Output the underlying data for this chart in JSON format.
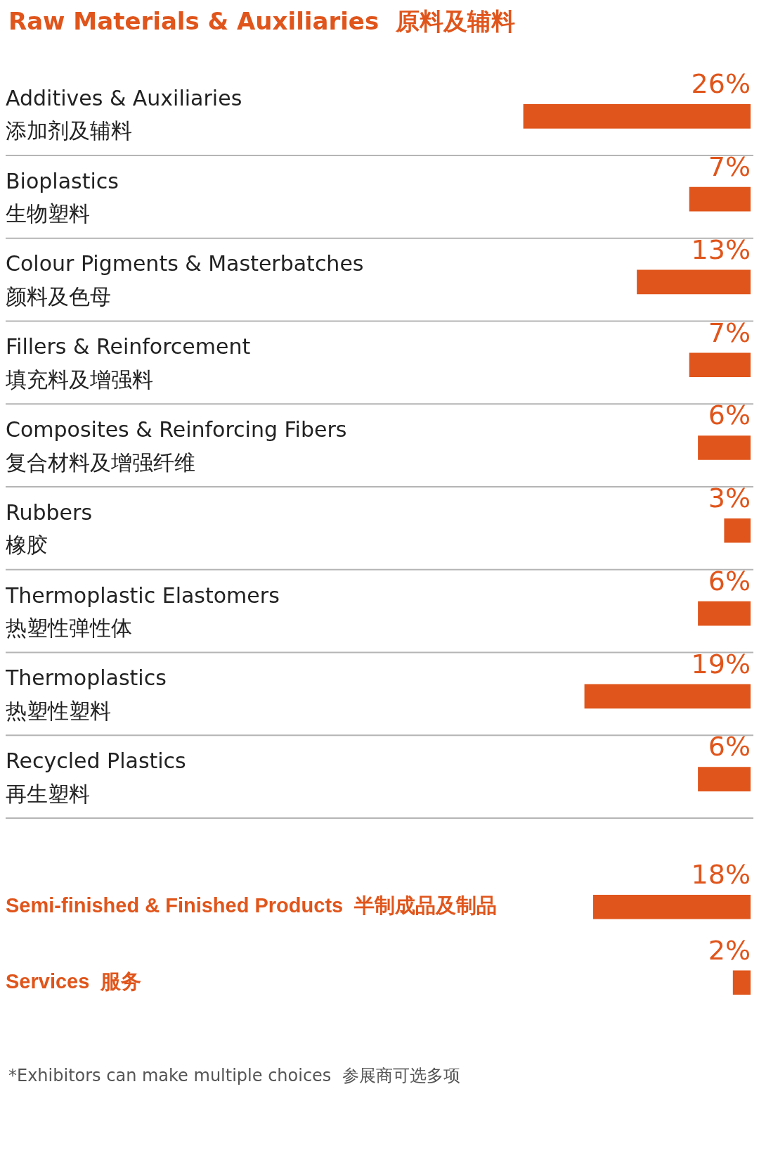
{
  "chart_data": [
    {
      "type": "bar",
      "orientation": "horizontal",
      "title": "Raw Materials & Auxiliaries  原料及辅料",
      "categories": [
        "Additives & Auxiliaries\n添加剂及辅料",
        "Bioplastics\n生物塑料",
        "Colour Pigments & Masterbatches\n颜料及色母",
        "Fillers & Reinforcement\n填充料及增强料",
        "Composites & Reinforcing Fibers\n复合材料及增强纤维",
        "Rubbers\n橡胶",
        "Thermoplastic Elastomers\n热塑性弹性体",
        "Thermoplastics\n热塑性塑料",
        "Recycled Plastics\n再生塑料"
      ],
      "values": [
        26,
        7,
        13,
        7,
        6,
        3,
        6,
        19,
        6
      ],
      "color": "#e0551b",
      "value_labels": [
        "26%",
        "7%",
        "13%",
        "7%",
        "6%",
        "3%",
        "6%",
        "19%",
        "6%"
      ],
      "grid": "y"
    },
    {
      "type": "bar",
      "orientation": "horizontal",
      "categories": [
        "Semi-finished & Finished Products  半制成品及制品",
        "Services  服务"
      ],
      "values": [
        18,
        2
      ],
      "color": "#e0551b",
      "value_labels": [
        "18%",
        "2%"
      ],
      "annotations": [
        "*Exhibitors can make multiple choices  参展商可选多项"
      ]
    }
  ]
}
